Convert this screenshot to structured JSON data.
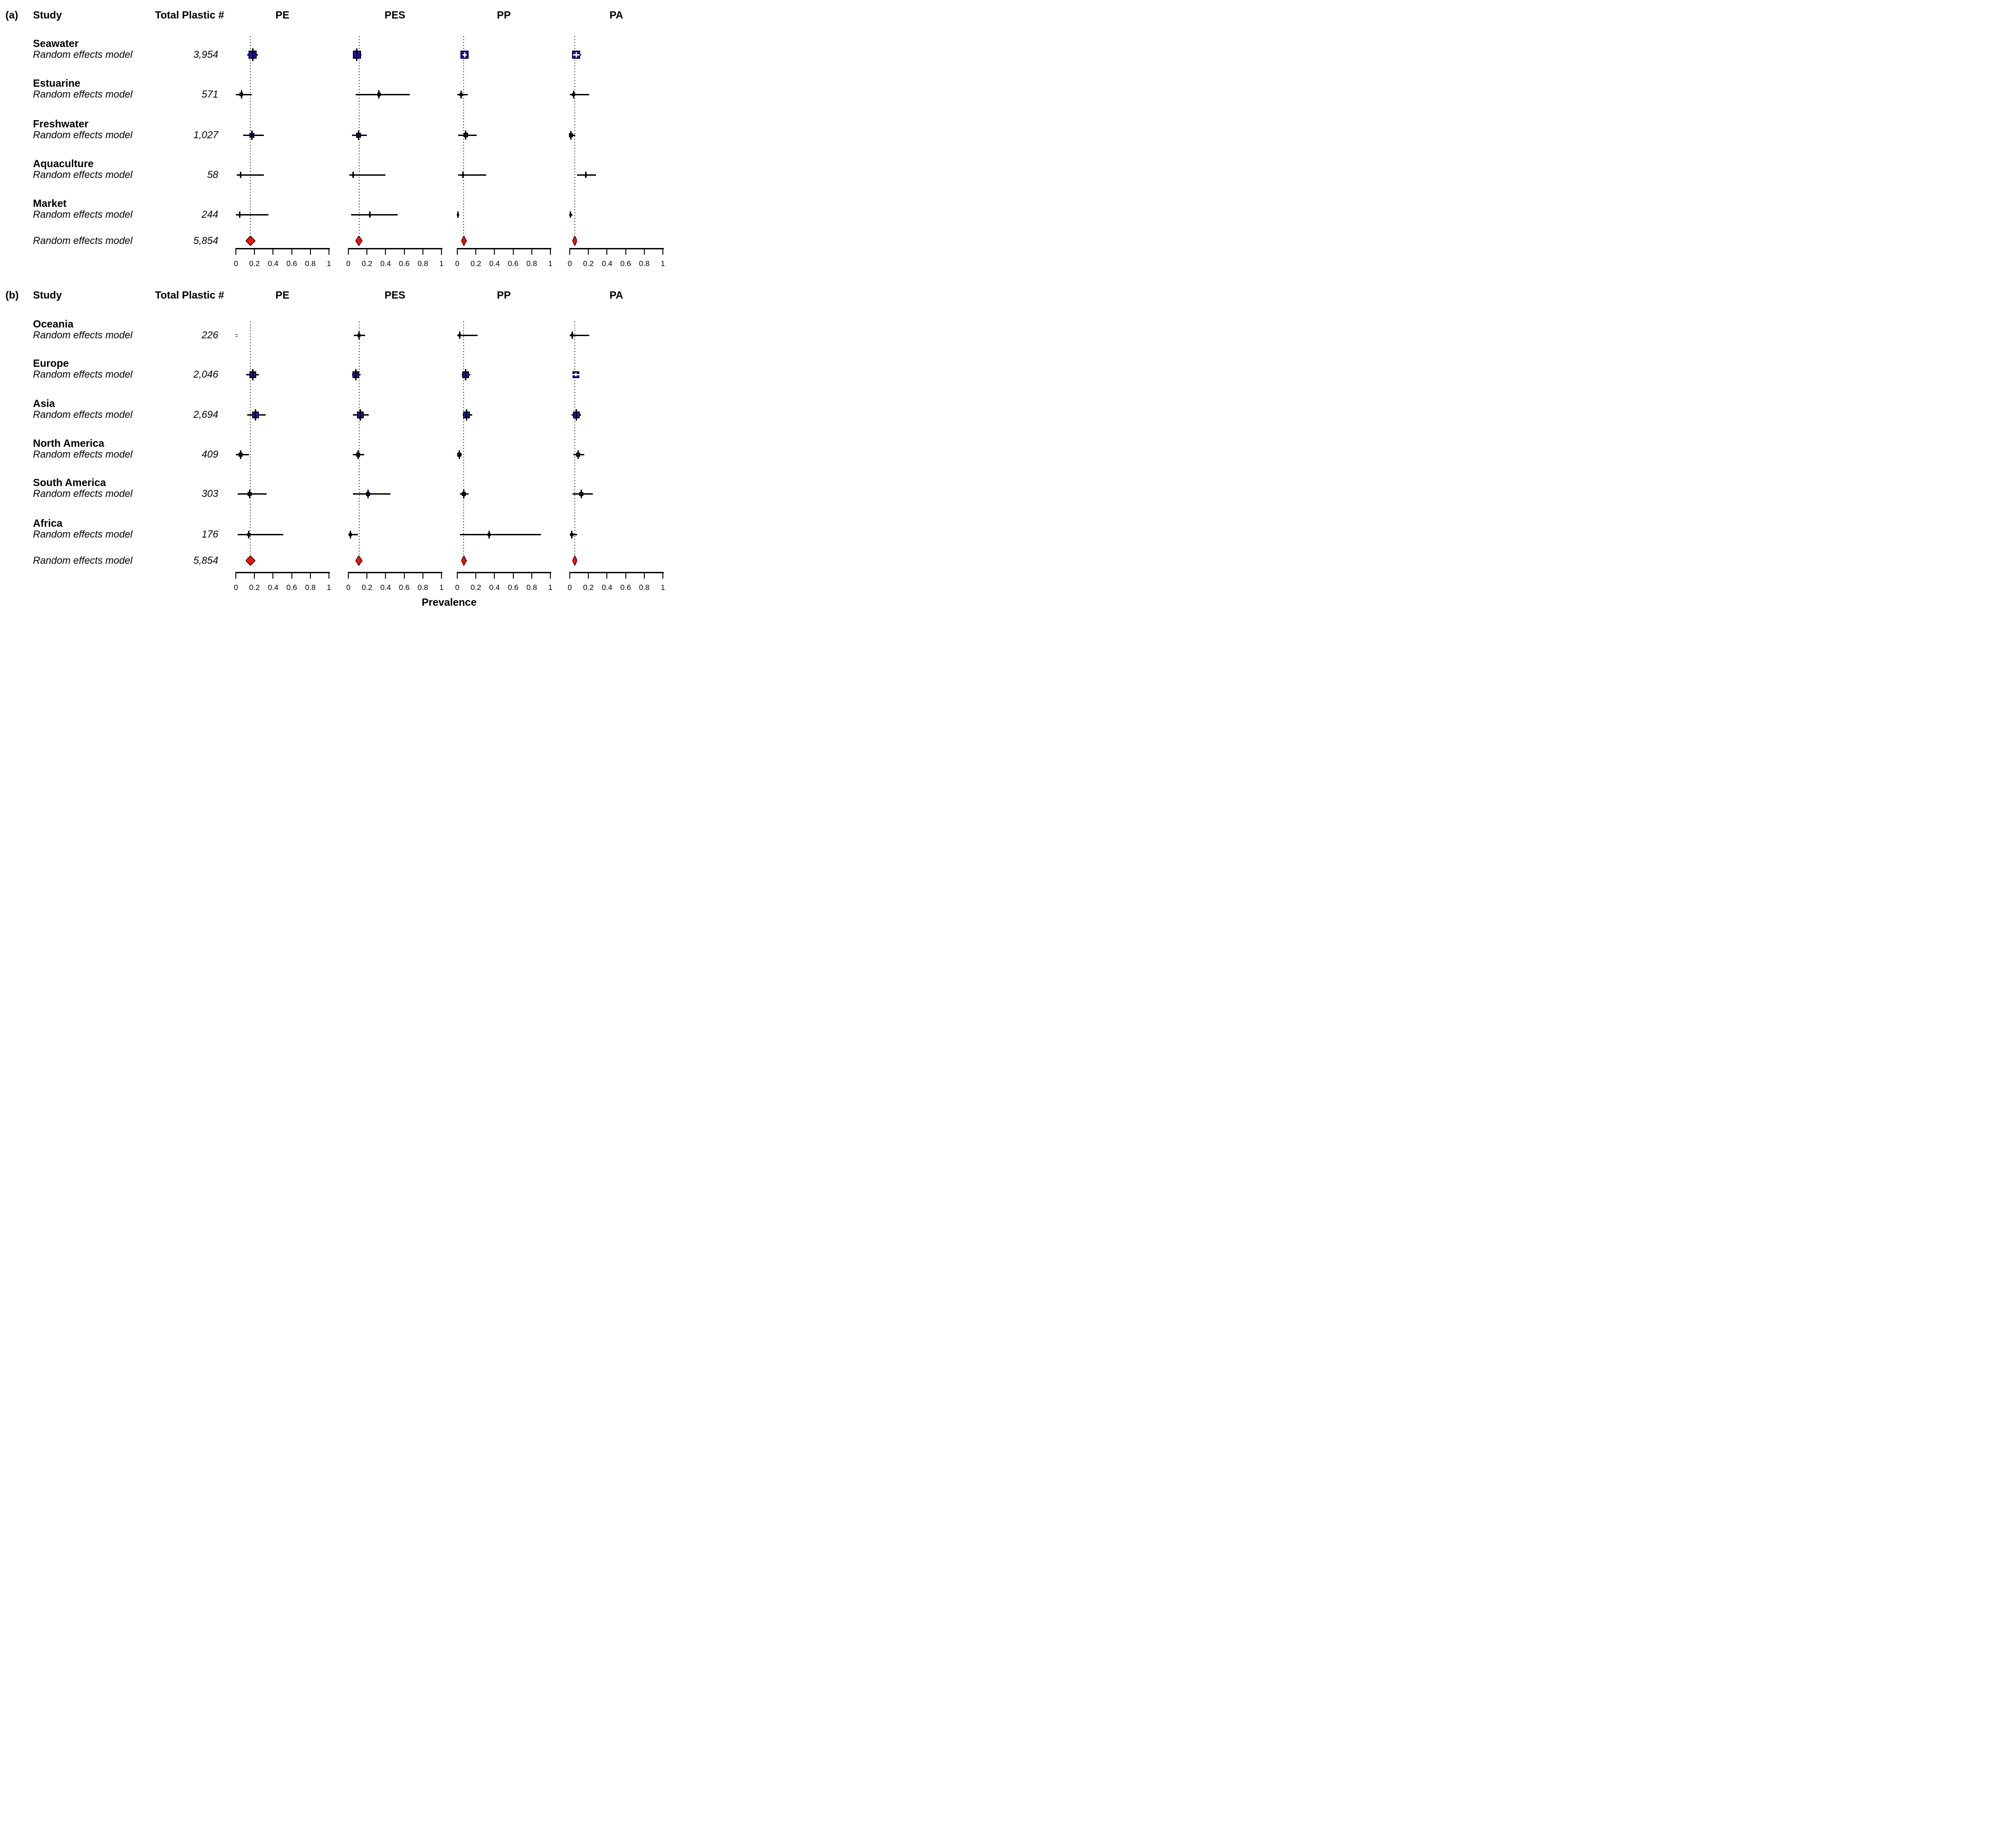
{
  "chart_data": {
    "type": "forest",
    "xlabel": "Prevalence",
    "xlim": [
      0,
      1
    ],
    "x_ticks": [
      0,
      0.2,
      0.4,
      0.6,
      0.8,
      1
    ],
    "x_tick_labels": [
      "0",
      "0.2",
      "0.4",
      "0.6",
      "0.8",
      "1"
    ],
    "polymers": [
      "PE",
      "PES",
      "PP",
      "PA"
    ],
    "colors": {
      "square": "#1a17ad",
      "diamond": "#e8130c",
      "ci": "#000000",
      "refline": "#3a3a3a"
    },
    "panels": [
      {
        "label": "(a)",
        "study_header": "Study",
        "total_header": "Total Plastic #",
        "rows": [
          {
            "study": "Seawater",
            "model": "Random effects model",
            "total_plastic": "3,954",
            "estimates": [
              {
                "shape": "square",
                "e": 0.18,
                "lo": 0.12,
                "hi": 0.24,
                "w": 18
              },
              {
                "shape": "square",
                "e": 0.09,
                "lo": 0.05,
                "hi": 0.14,
                "w": 18
              },
              {
                "shape": "square",
                "e": 0.08,
                "lo": 0.06,
                "hi": 0.1,
                "w": 18
              },
              {
                "shape": "square",
                "e": 0.07,
                "lo": 0.05,
                "hi": 0.12,
                "w": 18
              }
            ]
          },
          {
            "study": "Estuarine",
            "model": "Random effects model",
            "total_plastic": "571",
            "estimates": [
              {
                "shape": "square",
                "e": 0.06,
                "lo": 0.0,
                "hi": 0.17,
                "w": 8
              },
              {
                "shape": "square",
                "e": 0.33,
                "lo": 0.08,
                "hi": 0.66,
                "w": 8
              },
              {
                "shape": "square",
                "e": 0.04,
                "lo": 0.0,
                "hi": 0.11,
                "w": 7
              },
              {
                "shape": "square",
                "e": 0.04,
                "lo": 0.0,
                "hi": 0.21,
                "w": 7
              }
            ]
          },
          {
            "study": "Freshwater",
            "model": "Random effects model",
            "total_plastic": "1,027",
            "estimates": [
              {
                "shape": "square",
                "e": 0.17,
                "lo": 0.08,
                "hi": 0.3,
                "w": 11
              },
              {
                "shape": "square",
                "e": 0.11,
                "lo": 0.04,
                "hi": 0.2,
                "w": 11
              },
              {
                "shape": "square",
                "e": 0.09,
                "lo": 0.01,
                "hi": 0.21,
                "w": 10
              },
              {
                "shape": "square",
                "e": 0.01,
                "lo": 0.0,
                "hi": 0.06,
                "w": 9
              }
            ]
          },
          {
            "study": "Aquaculture",
            "model": "Random effects model",
            "total_plastic": "58",
            "estimates": [
              {
                "shape": "dot",
                "e": 0.05,
                "lo": 0.01,
                "hi": 0.3,
                "w": 6
              },
              {
                "shape": "dot",
                "e": 0.05,
                "lo": 0.01,
                "hi": 0.4,
                "w": 6
              },
              {
                "shape": "dot",
                "e": 0.06,
                "lo": 0.01,
                "hi": 0.31,
                "w": 6
              },
              {
                "shape": "dot",
                "e": 0.17,
                "lo": 0.08,
                "hi": 0.28,
                "w": 6
              }
            ]
          },
          {
            "study": "Market",
            "model": "Random effects model",
            "total_plastic": "244",
            "estimates": [
              {
                "shape": "dot",
                "e": 0.04,
                "lo": 0.0,
                "hi": 0.35,
                "w": 6
              },
              {
                "shape": "dot",
                "e": 0.23,
                "lo": 0.03,
                "hi": 0.53,
                "w": 6
              },
              {
                "shape": "dot",
                "e": 0.005,
                "lo": 0.0,
                "hi": 0.02,
                "w": 6
              },
              {
                "shape": "dot",
                "e": 0.008,
                "lo": 0.0,
                "hi": 0.03,
                "w": 6
              }
            ]
          }
        ],
        "overall": {
          "model": "Random effects model",
          "total_plastic": "5,854",
          "estimates": [
            {
              "shape": "diamond",
              "e": 0.157,
              "lo": 0.107,
              "hi": 0.207
            },
            {
              "shape": "diamond",
              "e": 0.115,
              "lo": 0.08,
              "hi": 0.15
            },
            {
              "shape": "diamond",
              "e": 0.07,
              "lo": 0.045,
              "hi": 0.1
            },
            {
              "shape": "diamond",
              "e": 0.055,
              "lo": 0.03,
              "hi": 0.08
            }
          ]
        }
      },
      {
        "label": "(b)",
        "study_header": "Study",
        "total_header": "Total Plastic #",
        "rows": [
          {
            "study": "Oceania",
            "model": "Random effects model",
            "total_plastic": "226",
            "estimates": [
              {
                "shape": "square",
                "e": 0.005,
                "lo": 0.0,
                "hi": 0.02,
                "w": 5
              },
              {
                "shape": "square",
                "e": 0.115,
                "lo": 0.06,
                "hi": 0.18,
                "w": 7
              },
              {
                "shape": "square",
                "e": 0.025,
                "lo": 0.0,
                "hi": 0.22,
                "w": 6
              },
              {
                "shape": "square",
                "e": 0.025,
                "lo": 0.0,
                "hi": 0.21,
                "w": 6
              }
            ]
          },
          {
            "study": "Europe",
            "model": "Random effects model",
            "total_plastic": "2,046",
            "estimates": [
              {
                "shape": "square",
                "e": 0.18,
                "lo": 0.11,
                "hi": 0.25,
                "w": 15
              },
              {
                "shape": "square",
                "e": 0.08,
                "lo": 0.04,
                "hi": 0.13,
                "w": 15
              },
              {
                "shape": "square",
                "e": 0.09,
                "lo": 0.05,
                "hi": 0.14,
                "w": 15
              },
              {
                "shape": "square",
                "e": 0.065,
                "lo": 0.03,
                "hi": 0.1,
                "w": 15
              }
            ]
          },
          {
            "study": "Asia",
            "model": "Random effects model",
            "total_plastic": "2,694",
            "estimates": [
              {
                "shape": "square",
                "e": 0.21,
                "lo": 0.12,
                "hi": 0.32,
                "w": 15
              },
              {
                "shape": "square",
                "e": 0.13,
                "lo": 0.05,
                "hi": 0.22,
                "w": 15
              },
              {
                "shape": "square",
                "e": 0.1,
                "lo": 0.06,
                "hi": 0.16,
                "w": 15
              },
              {
                "shape": "square",
                "e": 0.07,
                "lo": 0.02,
                "hi": 0.12,
                "w": 15
              }
            ]
          },
          {
            "study": "North America",
            "model": "Random effects model",
            "total_plastic": "409",
            "estimates": [
              {
                "shape": "square",
                "e": 0.05,
                "lo": 0.0,
                "hi": 0.14,
                "w": 9
              },
              {
                "shape": "square",
                "e": 0.105,
                "lo": 0.05,
                "hi": 0.17,
                "w": 9
              },
              {
                "shape": "square",
                "e": 0.02,
                "lo": 0.0,
                "hi": 0.05,
                "w": 9
              },
              {
                "shape": "square",
                "e": 0.09,
                "lo": 0.04,
                "hi": 0.155,
                "w": 9
              }
            ]
          },
          {
            "study": "South America",
            "model": "Random effects model",
            "total_plastic": "303",
            "estimates": [
              {
                "shape": "square",
                "e": 0.15,
                "lo": 0.02,
                "hi": 0.33,
                "w": 9
              },
              {
                "shape": "square",
                "e": 0.21,
                "lo": 0.05,
                "hi": 0.45,
                "w": 9
              },
              {
                "shape": "square",
                "e": 0.07,
                "lo": 0.03,
                "hi": 0.12,
                "w": 9
              },
              {
                "shape": "square",
                "e": 0.125,
                "lo": 0.03,
                "hi": 0.25,
                "w": 9
              }
            ]
          },
          {
            "study": "Africa",
            "model": "Random effects model",
            "total_plastic": "176",
            "estimates": [
              {
                "shape": "square",
                "e": 0.14,
                "lo": 0.02,
                "hi": 0.51,
                "w": 7
              },
              {
                "shape": "square",
                "e": 0.02,
                "lo": 0.0,
                "hi": 0.1,
                "w": 7
              },
              {
                "shape": "square",
                "e": 0.34,
                "lo": 0.03,
                "hi": 0.9,
                "w": 7
              },
              {
                "shape": "square",
                "e": 0.02,
                "lo": 0.0,
                "hi": 0.08,
                "w": 7
              }
            ]
          }
        ],
        "overall": {
          "model": "Random effects model",
          "total_plastic": "5,854",
          "estimates": [
            {
              "shape": "diamond",
              "e": 0.157,
              "lo": 0.107,
              "hi": 0.207
            },
            {
              "shape": "diamond",
              "e": 0.115,
              "lo": 0.08,
              "hi": 0.15
            },
            {
              "shape": "diamond",
              "e": 0.07,
              "lo": 0.045,
              "hi": 0.1
            },
            {
              "shape": "diamond",
              "e": 0.055,
              "lo": 0.03,
              "hi": 0.08
            }
          ]
        }
      }
    ]
  }
}
